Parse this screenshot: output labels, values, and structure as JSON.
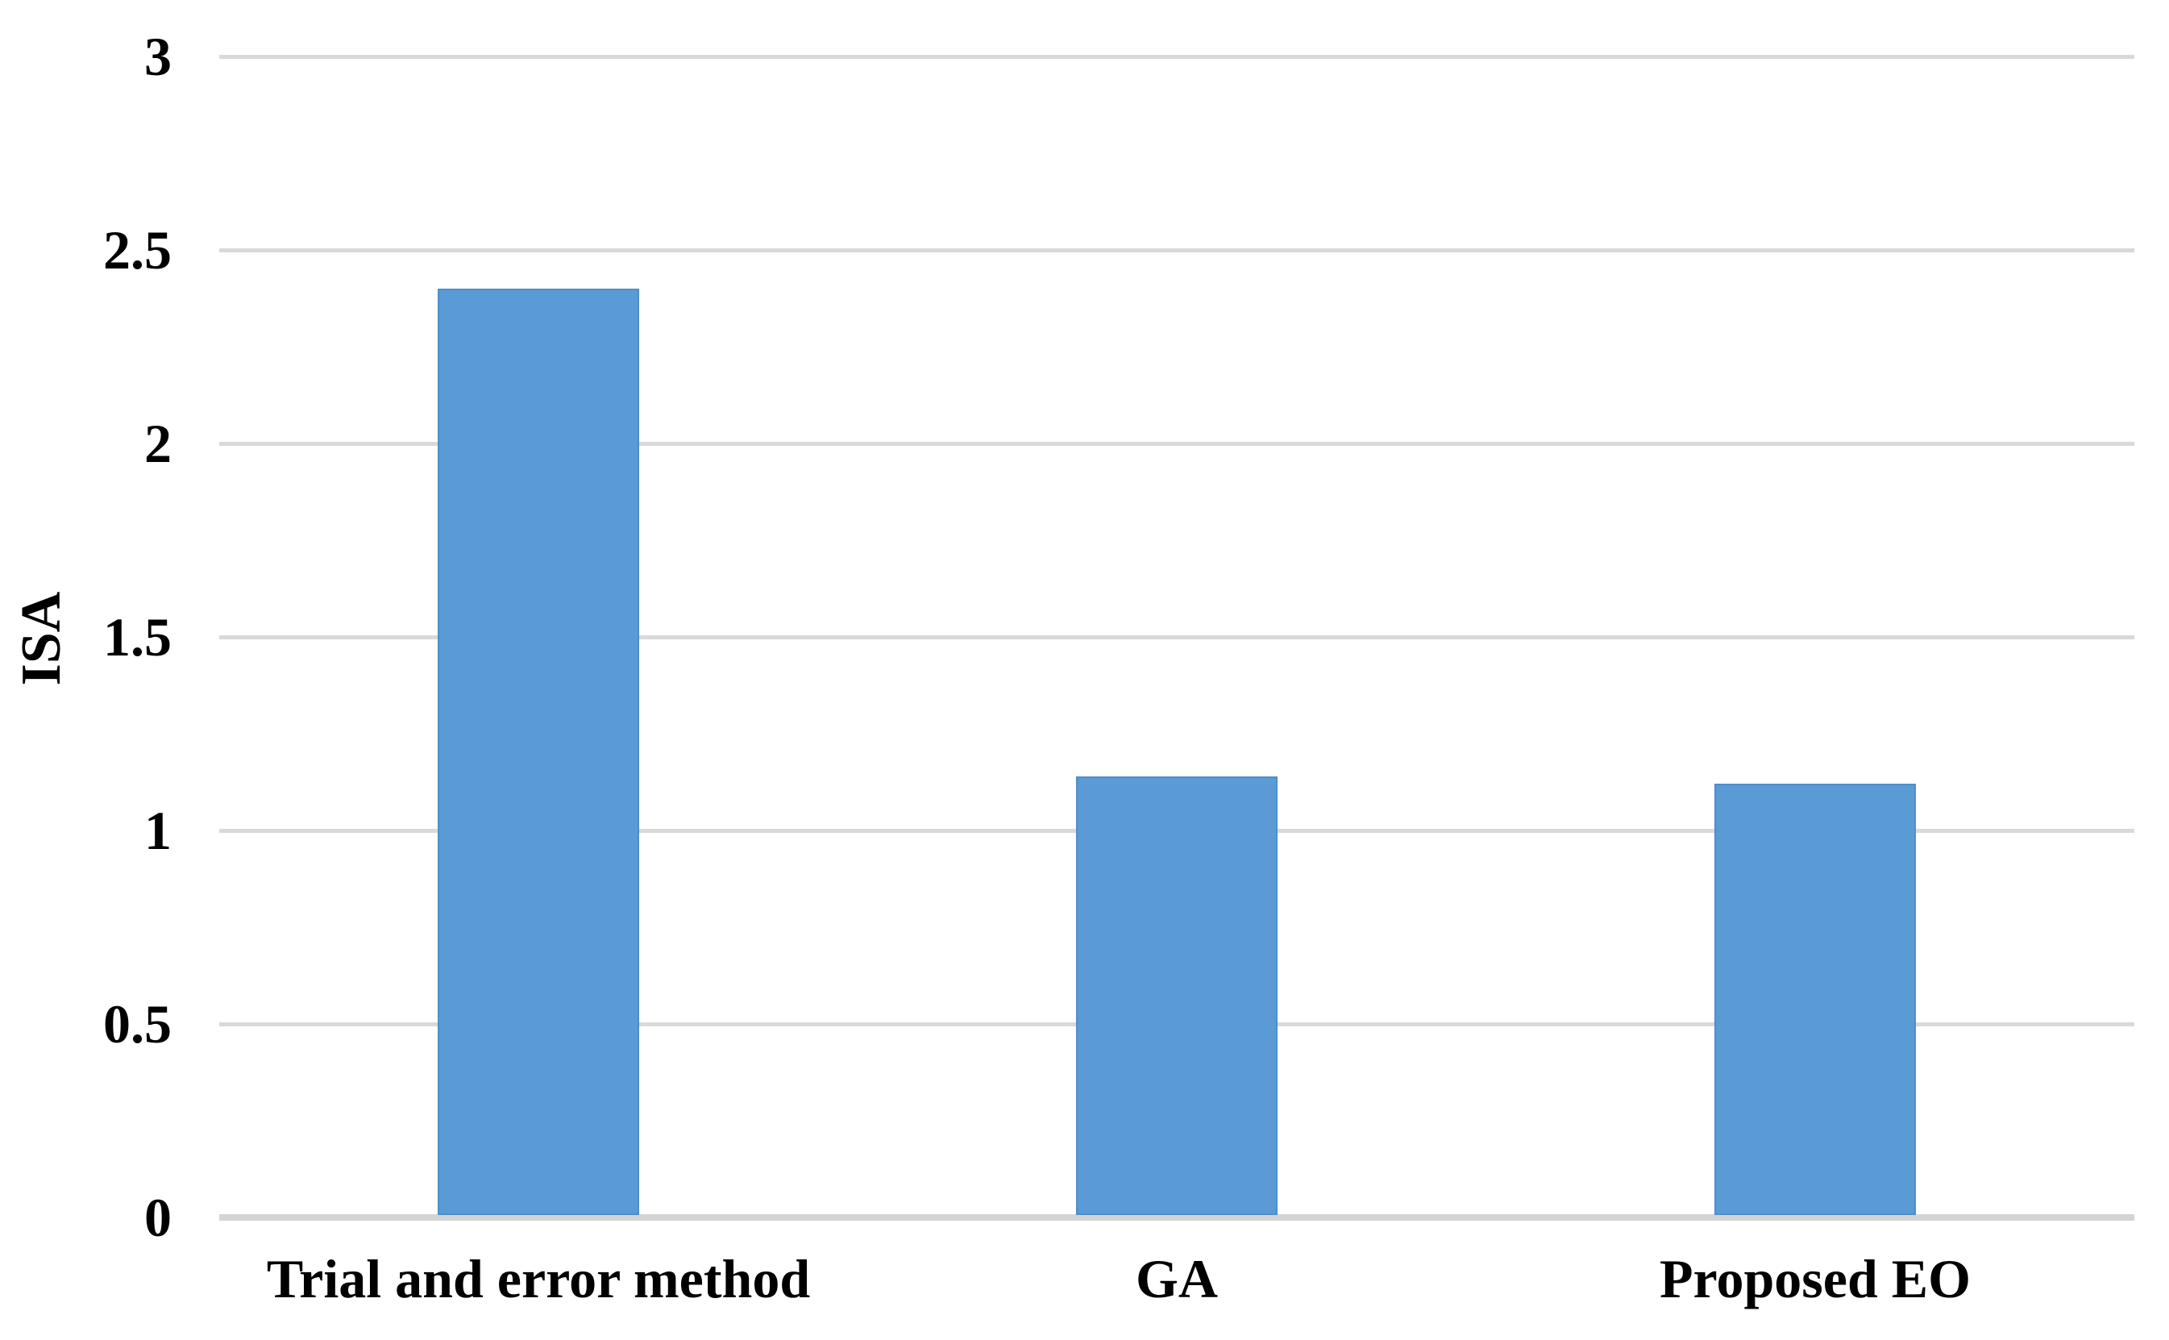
{
  "chart_data": {
    "type": "bar",
    "categories": [
      "Trial and error method",
      "GA",
      "Proposed EO"
    ],
    "values": [
      2.4,
      1.14,
      1.12
    ],
    "title": "",
    "xlabel": "",
    "ylabel": "ISA",
    "ylim": [
      0,
      3
    ],
    "ytick_interval": 0.5,
    "ytick_labels": [
      "0",
      "0.5",
      "1",
      "1.5",
      "2",
      "2.5",
      "3"
    ],
    "grid": "horizontal",
    "legend_position": "none",
    "colors": {
      "bar_fill": "#5B9BD5",
      "bar_border": "#4E8ECB",
      "gridline": "#D9D9D9",
      "axis_line": "#D4D4D4",
      "text": "#000000",
      "background": "#FFFFFF"
    }
  }
}
